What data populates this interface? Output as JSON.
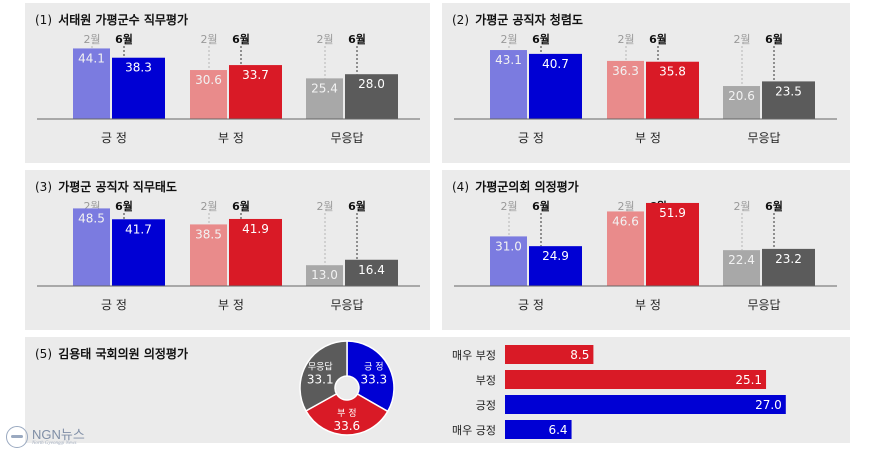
{
  "panels": [
    {
      "num": "(1)",
      "title": "서태원 가평군수 직무평가"
    },
    {
      "num": "(2)",
      "title": "가평군 공직자 청렴도"
    },
    {
      "num": "(3)",
      "title": "가평군 공직자 직무태도"
    },
    {
      "num": "(4)",
      "title": "가평군의회 의정평가"
    },
    {
      "num": "(5)",
      "title": "김용태 국회의원 의정평가"
    }
  ],
  "colors": {
    "positive_feb": "#7b7be0",
    "positive_jun": "#0000d4",
    "negative_feb": "#e98b8b",
    "negative_jun": "#d91a26",
    "noanswer_feb": "#a8a8a8",
    "noanswer_jun": "#5b5b5b"
  },
  "chart_data": [
    {
      "type": "bar",
      "categories": [
        "긍 정",
        "부 정",
        "무응답"
      ],
      "period_labels": [
        "2월",
        "6월"
      ],
      "series": [
        {
          "name": "2월",
          "values": [
            44.1,
            30.6,
            25.4
          ]
        },
        {
          "name": "6월",
          "values": [
            38.3,
            33.7,
            28.0
          ]
        }
      ]
    },
    {
      "type": "bar",
      "categories": [
        "긍 정",
        "부 정",
        "무응답"
      ],
      "period_labels": [
        "2월",
        "6월"
      ],
      "series": [
        {
          "name": "2월",
          "values": [
            43.1,
            36.3,
            20.6
          ]
        },
        {
          "name": "6월",
          "values": [
            40.7,
            35.8,
            23.5
          ]
        }
      ]
    },
    {
      "type": "bar",
      "categories": [
        "긍 정",
        "부 정",
        "무응답"
      ],
      "period_labels": [
        "2월",
        "6월"
      ],
      "series": [
        {
          "name": "2월",
          "values": [
            48.5,
            38.5,
            13.0
          ]
        },
        {
          "name": "6월",
          "values": [
            41.7,
            41.9,
            16.4
          ]
        }
      ]
    },
    {
      "type": "bar",
      "categories": [
        "긍 정",
        "부 정",
        "무응답"
      ],
      "period_labels": [
        "2월",
        "6월"
      ],
      "series": [
        {
          "name": "2월",
          "values": [
            31.0,
            46.6,
            22.4
          ]
        },
        {
          "name": "6월",
          "values": [
            24.9,
            51.9,
            23.2
          ]
        }
      ]
    },
    {
      "type": "pie",
      "slices": [
        {
          "label": "긍 정",
          "value": 33.3,
          "color": "#0000d4"
        },
        {
          "label": "부 정",
          "value": 33.6,
          "color": "#d91a26"
        },
        {
          "label": "무응답",
          "value": 33.1,
          "color": "#5b5b5b"
        }
      ]
    },
    {
      "type": "bar",
      "orientation": "horizontal",
      "categories": [
        "매우 부정",
        "부정",
        "긍정",
        "매우 긍정"
      ],
      "values": [
        8.5,
        25.1,
        27.0,
        6.4
      ],
      "colors": [
        "#d91a26",
        "#d91a26",
        "#0000d4",
        "#0000d4"
      ]
    }
  ],
  "watermark": {
    "name": "NGN뉴스",
    "sub": "North Gyeonggi News"
  }
}
